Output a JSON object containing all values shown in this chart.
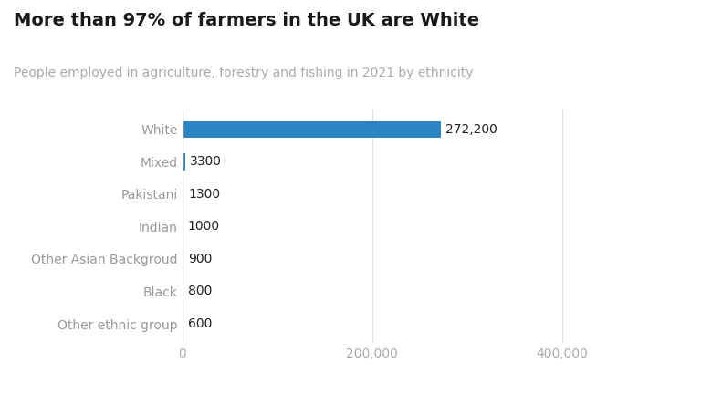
{
  "title": "More than 97% of farmers in the UK are White",
  "subtitle": "People employed in agriculture, forestry and fishing in 2021 by ethnicity",
  "categories": [
    "White",
    "Mixed",
    "Pakistani",
    "Indian",
    "Other Asian Backgroud",
    "Black",
    "Other ethnic group"
  ],
  "values": [
    272200,
    3300,
    1300,
    1000,
    900,
    800,
    600
  ],
  "labels": [
    "272,200",
    "3300",
    "1300",
    "1000",
    "900",
    "800",
    "600"
  ],
  "bar_color": "#2b85c2",
  "title_fontsize": 14,
  "subtitle_fontsize": 10,
  "value_label_fontsize": 10,
  "tick_label_fontsize": 10,
  "xlim": [
    0,
    450000
  ],
  "xticks": [
    0,
    200000,
    400000
  ],
  "xtick_labels": [
    "0",
    "200,000",
    "400,000"
  ],
  "background_color": "#ffffff",
  "label_color": "#222222",
  "subtitle_color": "#aaaaaa",
  "category_color": "#999999",
  "xtick_color": "#aaaaaa",
  "grid_color": "#e0e0e0"
}
